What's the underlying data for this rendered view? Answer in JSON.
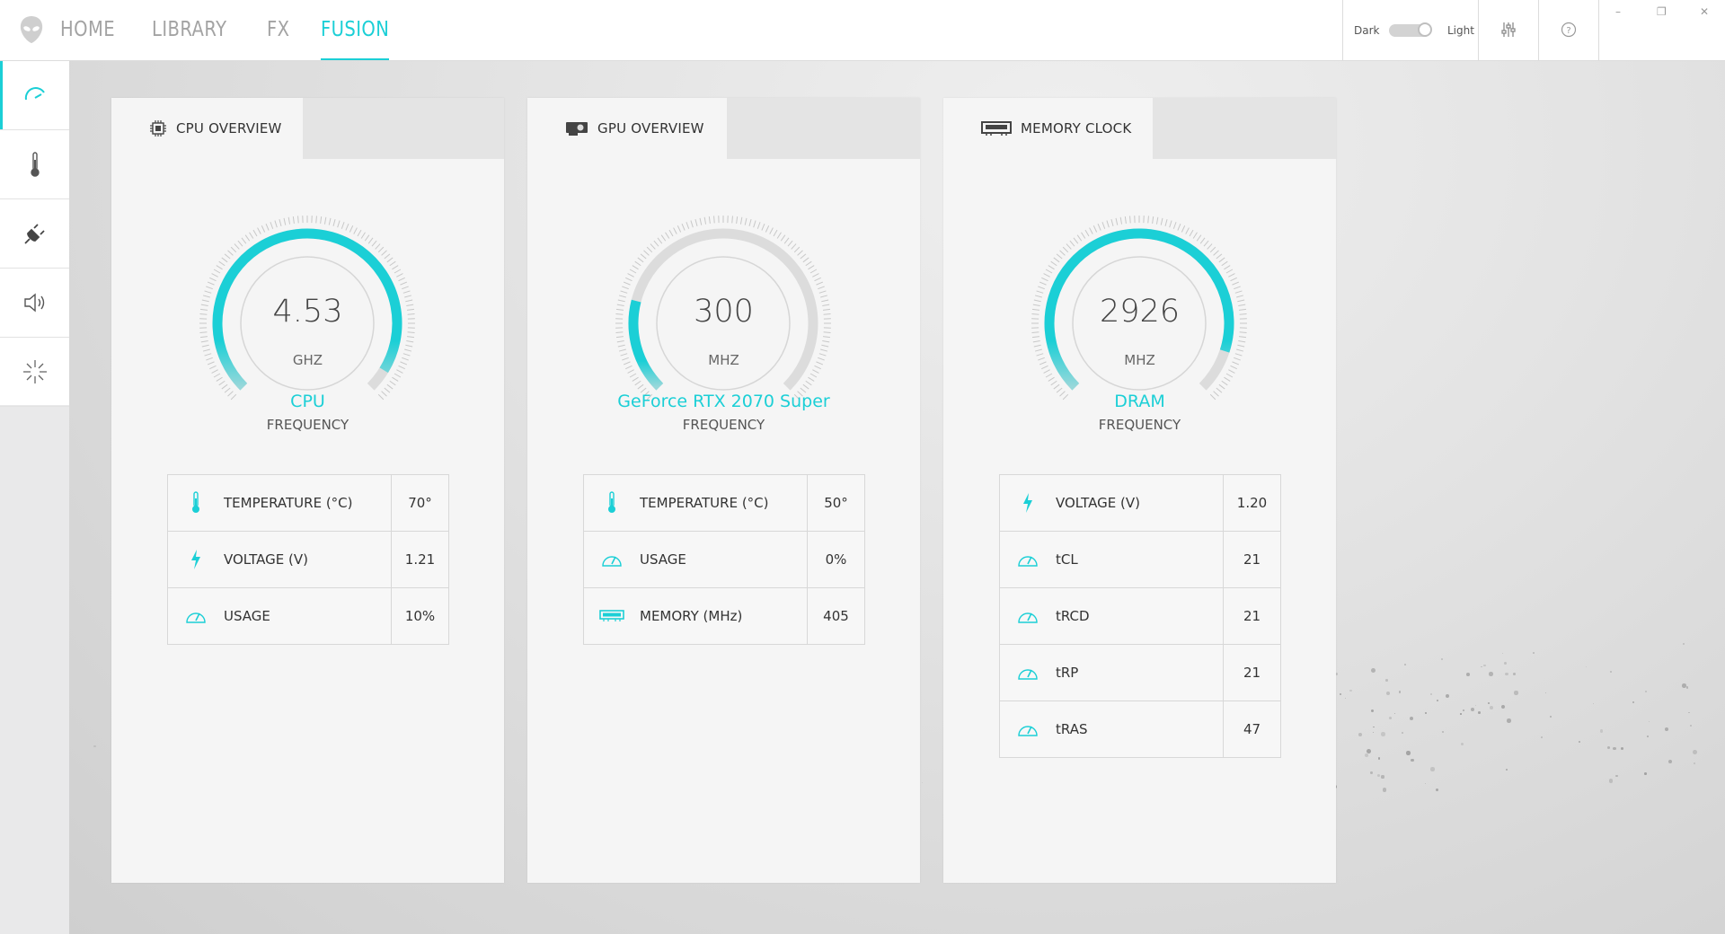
{
  "nav": {
    "items": [
      {
        "label": "HOME",
        "active": false
      },
      {
        "label": "LIBRARY",
        "active": false
      },
      {
        "label": "FX",
        "active": false
      },
      {
        "label": "FUSION",
        "active": true
      }
    ]
  },
  "theme": {
    "dark_label": "Dark",
    "light_label": "Light",
    "selected": "Light"
  },
  "window_controls": {
    "minimize": "–",
    "restore": "❐",
    "close": "✕"
  },
  "accent_color": "#1bcfd6",
  "sidebar": {
    "items": [
      {
        "icon": "performance-gauge-icon",
        "active": true
      },
      {
        "icon": "thermometer-icon",
        "active": false
      },
      {
        "icon": "power-plug-icon",
        "active": false
      },
      {
        "icon": "speaker-icon",
        "active": false
      },
      {
        "icon": "light-burst-icon",
        "active": false
      }
    ]
  },
  "cards": [
    {
      "title": "CPU OVERVIEW",
      "icon": "cpu-chip-icon",
      "gauge": {
        "value": "4.53",
        "unit": "GHZ",
        "label": "CPU",
        "sublabel": "FREQUENCY",
        "fill": 0.95
      },
      "stats": [
        {
          "icon": "thermometer-icon",
          "name": "TEMPERATURE (°C)",
          "value": "70°"
        },
        {
          "icon": "lightning-icon",
          "name": "VOLTAGE (V)",
          "value": "1.21"
        },
        {
          "icon": "usage-gauge-icon",
          "name": "USAGE",
          "value": "10%"
        }
      ]
    },
    {
      "title": "GPU OVERVIEW",
      "icon": "graphics-card-icon",
      "gauge": {
        "value": "300",
        "unit": "MHZ",
        "label": "GeForce RTX 2070 Super",
        "sublabel": "FREQUENCY",
        "fill": 0.22
      },
      "stats": [
        {
          "icon": "thermometer-icon",
          "name": "TEMPERATURE (°C)",
          "value": "50°"
        },
        {
          "icon": "usage-gauge-icon",
          "name": "USAGE",
          "value": "0%"
        },
        {
          "icon": "memory-module-icon",
          "name": "MEMORY (MHz)",
          "value": "405"
        }
      ]
    },
    {
      "title": "MEMORY CLOCK",
      "icon": "memory-module-icon",
      "gauge": {
        "value": "2926",
        "unit": "MHZ",
        "label": "DRAM",
        "sublabel": "FREQUENCY",
        "fill": 0.9
      },
      "stats": [
        {
          "icon": "lightning-icon",
          "name": "VOLTAGE (V)",
          "value": "1.20"
        },
        {
          "icon": "usage-gauge-icon",
          "name": "tCL",
          "value": "21"
        },
        {
          "icon": "usage-gauge-icon",
          "name": "tRCD",
          "value": "21"
        },
        {
          "icon": "usage-gauge-icon",
          "name": "tRP",
          "value": "21"
        },
        {
          "icon": "usage-gauge-icon",
          "name": "tRAS",
          "value": "47"
        }
      ]
    }
  ]
}
